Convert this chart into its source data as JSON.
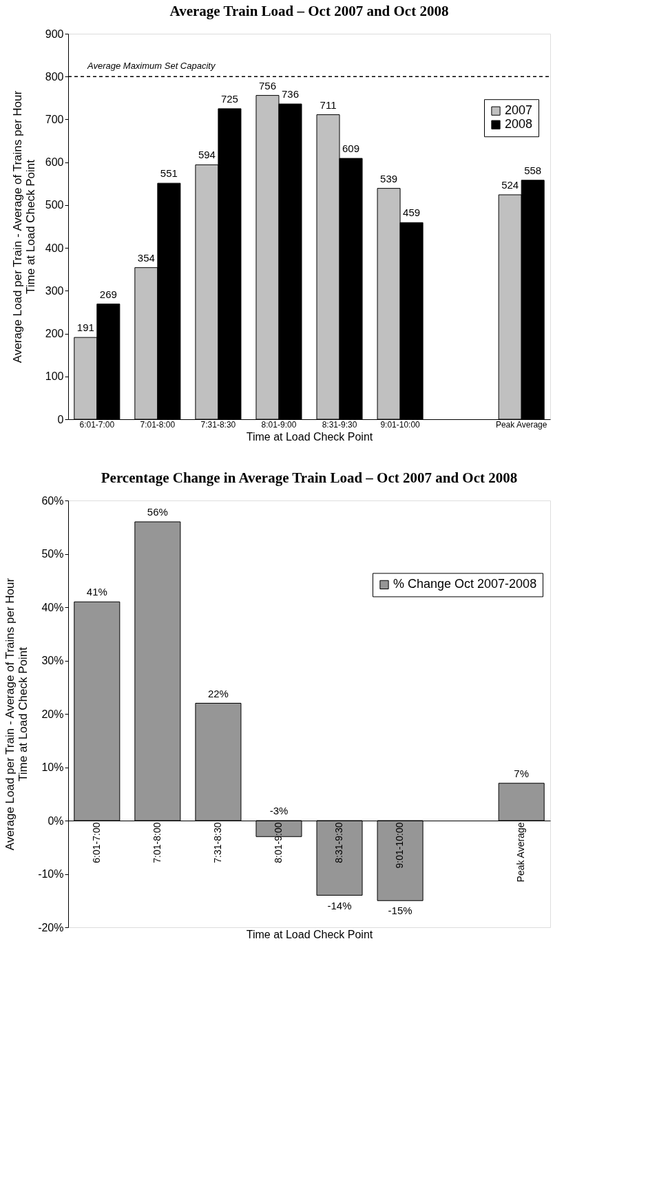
{
  "chart_data": [
    {
      "type": "bar",
      "title": "Average Train Load – Oct 2007 and Oct 2008",
      "xlabel": "Time at Load Check Point",
      "ylabel": "Average Load per Train - Average of Trains per Hour\nTime at Load Check Point",
      "categories": [
        "6:01-7:00",
        "7:01-8:00",
        "7:31-8:30",
        "8:01-9:00",
        "8:31-9:30",
        "9:01-10:00",
        null,
        "Peak Average"
      ],
      "series": [
        {
          "name": "2007",
          "color": "#c0c0c0",
          "values": [
            191,
            354,
            594,
            756,
            711,
            539,
            null,
            524
          ]
        },
        {
          "name": "2008",
          "color": "#000000",
          "values": [
            269,
            551,
            725,
            736,
            609,
            459,
            null,
            558
          ]
        }
      ],
      "ylim": [
        0,
        900
      ],
      "yticks": [
        0,
        100,
        200,
        300,
        400,
        500,
        600,
        700,
        800,
        900
      ],
      "data_labels": true,
      "legend": "top right",
      "grid": false,
      "ref_lines": [
        {
          "axis": "y",
          "value": 800,
          "label": "Average Maximum Set Capacity",
          "color": "#000000",
          "line_style": "dashed"
        }
      ]
    },
    {
      "type": "bar",
      "title": "Percentage Change in Average Train Load – Oct 2007 and Oct 2008",
      "xlabel": "Time at Load Check Point",
      "ylabel": "Average Load per Train - Average of Trains per Hour\nTime at Load Check Point",
      "categories": [
        "6:01-7:00",
        "7:01-8:00",
        "7:31-8:30",
        "8:01-9:00",
        "8:31-9:30",
        "9:01-10:00",
        null,
        "Peak Average"
      ],
      "series": [
        {
          "name": "% Change Oct 2007-2008",
          "color": "#969696",
          "values": [
            41,
            56,
            22,
            -3,
            -14,
            -15,
            null,
            7
          ],
          "value_labels": [
            "41%",
            "56%",
            "22%",
            "-3%",
            "-14%",
            "-15%",
            null,
            "7%"
          ]
        }
      ],
      "ylim": [
        -20,
        60
      ],
      "yticks": [
        {
          "value": 60,
          "label": "60%"
        },
        {
          "value": 50,
          "label": "50%"
        },
        {
          "value": 40,
          "label": "40%"
        },
        {
          "value": 30,
          "label": "30%"
        },
        {
          "value": 20,
          "label": "20%"
        },
        {
          "value": 10,
          "label": "10%"
        },
        {
          "value": 0,
          "label": "0%"
        },
        {
          "value": -10,
          "label": "-10%"
        },
        {
          "value": -20,
          "label": "-20%"
        }
      ],
      "legend": "top right",
      "grid": false
    }
  ]
}
